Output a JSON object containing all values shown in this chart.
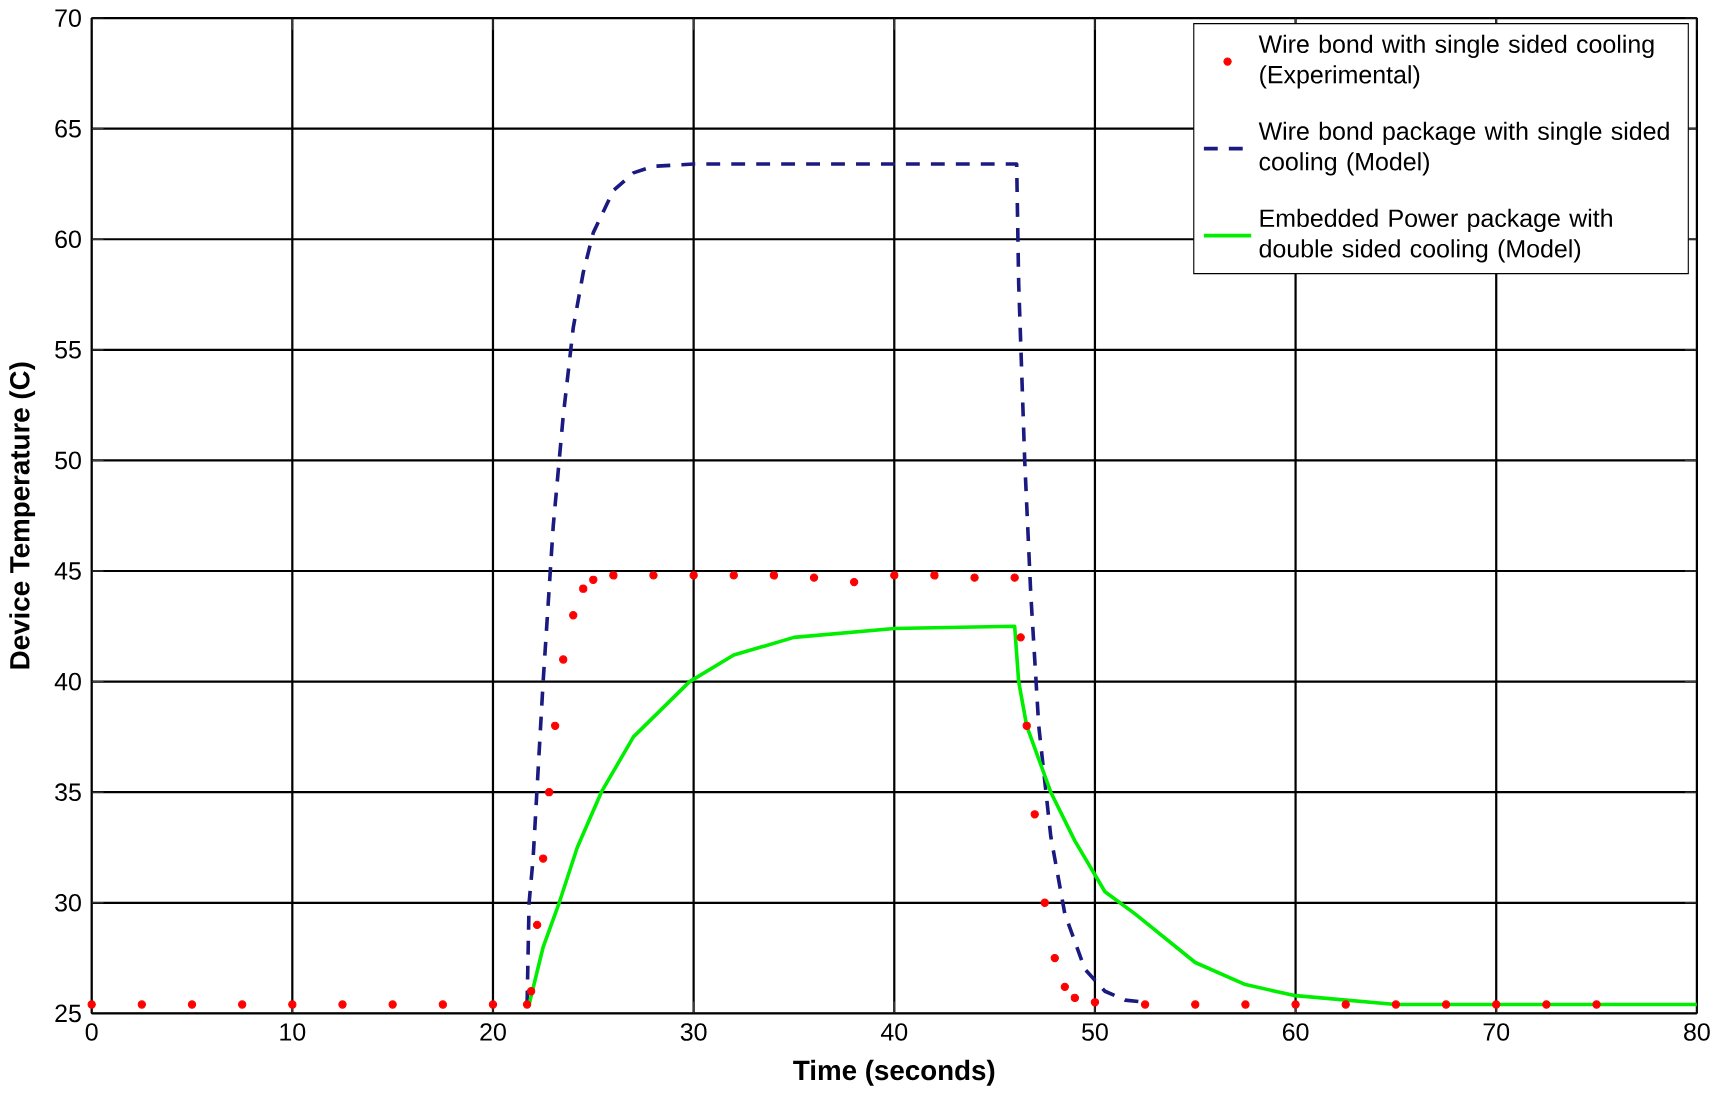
{
  "chart_data": {
    "type": "line",
    "xlabel": "Time (seconds)",
    "ylabel": "Device Temperature (C)",
    "xlim": [
      0,
      80
    ],
    "ylim": [
      25,
      70
    ],
    "xticks": [
      0,
      10,
      20,
      30,
      40,
      50,
      60,
      70,
      80
    ],
    "yticks": [
      25,
      30,
      35,
      40,
      45,
      50,
      55,
      60,
      65,
      70
    ],
    "grid": true,
    "legend": "top right",
    "series": [
      {
        "name": "Wire bond with single sided cooling (Experimental)",
        "type": "scatter",
        "marker": "circle",
        "color": "#ff0000",
        "x": [
          0,
          2.5,
          5,
          7.5,
          10,
          12.5,
          15,
          17.5,
          20,
          21.7,
          21.9,
          22.2,
          22.5,
          22.8,
          23.1,
          23.5,
          24,
          24.5,
          25,
          26,
          28,
          30,
          32,
          34,
          36,
          38,
          40,
          42,
          44,
          46,
          46.3,
          46.6,
          47,
          47.5,
          48,
          48.5,
          49,
          50,
          52.5,
          55,
          57.5,
          60,
          62.5,
          65,
          67.5,
          70,
          72.5,
          75
        ],
        "values": [
          25.4,
          25.4,
          25.4,
          25.4,
          25.4,
          25.4,
          25.4,
          25.4,
          25.4,
          25.4,
          26,
          29,
          32,
          35,
          38,
          41,
          43,
          44.2,
          44.6,
          44.8,
          44.8,
          44.8,
          44.8,
          44.8,
          44.7,
          44.5,
          44.8,
          44.8,
          44.7,
          44.7,
          42,
          38,
          34,
          30,
          27.5,
          26.2,
          25.7,
          25.5,
          25.4,
          25.4,
          25.4,
          25.4,
          25.4,
          25.4,
          25.4,
          25.4,
          25.4,
          25.4
        ]
      },
      {
        "name": "Wire bond package with single sided cooling (Model)",
        "line_style": "dashed",
        "color": "#1a1a80",
        "x": [
          21.7,
          21.8,
          22.0,
          22.5,
          23,
          23.5,
          24,
          24.5,
          25,
          26,
          27,
          28,
          30,
          46.1,
          46.2,
          46.5,
          46.8,
          47.2,
          47.8,
          48.5,
          49.5,
          50.5,
          51.5,
          52.5
        ],
        "values": [
          25.4,
          30,
          32,
          40,
          47,
          52,
          56,
          58.5,
          60.3,
          62.2,
          63,
          63.3,
          63.4,
          63.4,
          58,
          50,
          44,
          38,
          33,
          29.5,
          27,
          26,
          25.6,
          25.5
        ]
      },
      {
        "name": "Embedded Power package with double sided cooling (Model)",
        "line_style": "solid",
        "color": "#00ee00",
        "x": [
          21.8,
          22.5,
          23.3,
          24.2,
          25.4,
          27,
          29.8,
          32,
          35,
          40,
          46,
          46.2,
          46.6,
          47.2,
          47.8,
          49,
          50.5,
          52,
          55,
          57.5,
          60,
          62.5,
          65,
          70,
          75,
          80
        ],
        "values": [
          25.4,
          28,
          30,
          32.5,
          35,
          37.5,
          40,
          41.2,
          42,
          42.4,
          42.5,
          40,
          38,
          36.5,
          35,
          32.8,
          30.5,
          29.5,
          27.3,
          26.3,
          25.8,
          25.6,
          25.4,
          25.4,
          25.4,
          25.4
        ]
      }
    ]
  }
}
